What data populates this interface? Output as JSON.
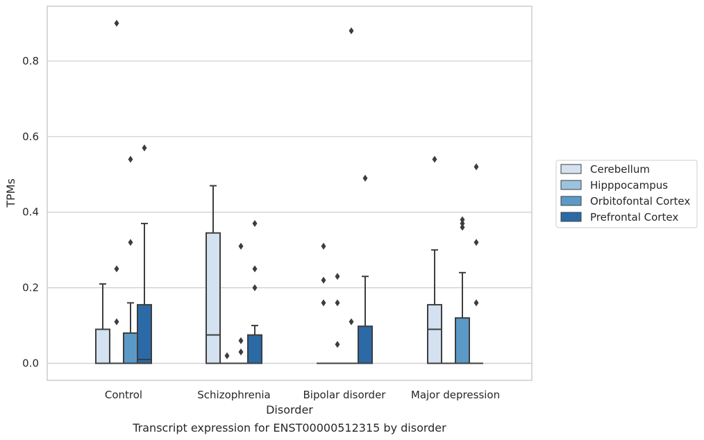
{
  "chart_data": {
    "type": "box",
    "caption": "Transcript expression for ENST00000512315 by disorder",
    "xlabel": "Disorder",
    "ylabel": "TPMs",
    "ylim": [
      -0.045,
      0.945
    ],
    "yticks": [
      0.0,
      0.2,
      0.4,
      0.6,
      0.8
    ],
    "ytick_labels": [
      "0.0",
      "0.2",
      "0.4",
      "0.6",
      "0.8"
    ],
    "grid": "horizontal",
    "legend_position": "right",
    "categories": [
      "Control",
      "Schizophrenia",
      "Bipolar disorder",
      "Major depression"
    ],
    "series": [
      {
        "name": "Cerebellum",
        "color": "#d3e1f0",
        "boxes": [
          {
            "q1": 0,
            "median": 0,
            "q3": 0.09,
            "whisker_low": 0,
            "whisker_high": 0.21,
            "outliers": []
          },
          {
            "q1": 0,
            "median": 0.075,
            "q3": 0.345,
            "whisker_low": 0,
            "whisker_high": 0.47,
            "outliers": []
          },
          {
            "q1": 0,
            "median": 0,
            "q3": 0,
            "whisker_low": 0,
            "whisker_high": 0,
            "outliers": [
              0.16,
              0.22,
              0.31
            ]
          },
          {
            "q1": 0,
            "median": 0.09,
            "q3": 0.155,
            "whisker_low": 0,
            "whisker_high": 0.3,
            "outliers": [
              0.54
            ]
          }
        ]
      },
      {
        "name": "Hipppocampus",
        "color": "#9cc3de",
        "boxes": [
          {
            "q1": 0,
            "median": 0,
            "q3": 0,
            "whisker_low": 0,
            "whisker_high": 0,
            "outliers": [
              0.11,
              0.25,
              0.9
            ]
          },
          {
            "q1": 0,
            "median": 0,
            "q3": 0,
            "whisker_low": 0,
            "whisker_high": 0,
            "outliers": [
              0.02
            ]
          },
          {
            "q1": 0,
            "median": 0,
            "q3": 0,
            "whisker_low": 0,
            "whisker_high": 0,
            "outliers": [
              0.05,
              0.16,
              0.23
            ]
          },
          {
            "q1": 0,
            "median": 0,
            "q3": 0,
            "whisker_low": 0,
            "whisker_high": 0,
            "outliers": []
          }
        ]
      },
      {
        "name": "Orbitofontal Cortex",
        "color": "#5b9ac7",
        "boxes": [
          {
            "q1": 0,
            "median": 0,
            "q3": 0.08,
            "whisker_low": 0,
            "whisker_high": 0.16,
            "outliers": [
              0.32,
              0.54
            ]
          },
          {
            "q1": 0,
            "median": 0,
            "q3": 0,
            "whisker_low": 0,
            "whisker_high": 0,
            "outliers": [
              0.03,
              0.06,
              0.31
            ]
          },
          {
            "q1": 0,
            "median": 0,
            "q3": 0,
            "whisker_low": 0,
            "whisker_high": 0,
            "outliers": [
              0.11,
              0.88
            ]
          },
          {
            "q1": 0,
            "median": 0,
            "q3": 0.12,
            "whisker_low": 0,
            "whisker_high": 0.24,
            "outliers": [
              0.36,
              0.37,
              0.38
            ]
          }
        ]
      },
      {
        "name": "Prefrontal Cortex",
        "color": "#2b6aa7",
        "boxes": [
          {
            "q1": 0,
            "median": 0.01,
            "q3": 0.155,
            "whisker_low": 0,
            "whisker_high": 0.37,
            "outliers": [
              0.57
            ]
          },
          {
            "q1": 0,
            "median": 0,
            "q3": 0.075,
            "whisker_low": 0,
            "whisker_high": 0.1,
            "outliers": [
              0.2,
              0.25,
              0.37
            ]
          },
          {
            "q1": 0,
            "median": 0,
            "q3": 0.098,
            "whisker_low": 0,
            "whisker_high": 0.23,
            "outliers": [
              0.49
            ]
          },
          {
            "q1": 0,
            "median": 0,
            "q3": 0,
            "whisker_low": 0,
            "whisker_high": 0,
            "outliers": [
              0.16,
              0.32,
              0.52
            ]
          }
        ]
      }
    ]
  }
}
